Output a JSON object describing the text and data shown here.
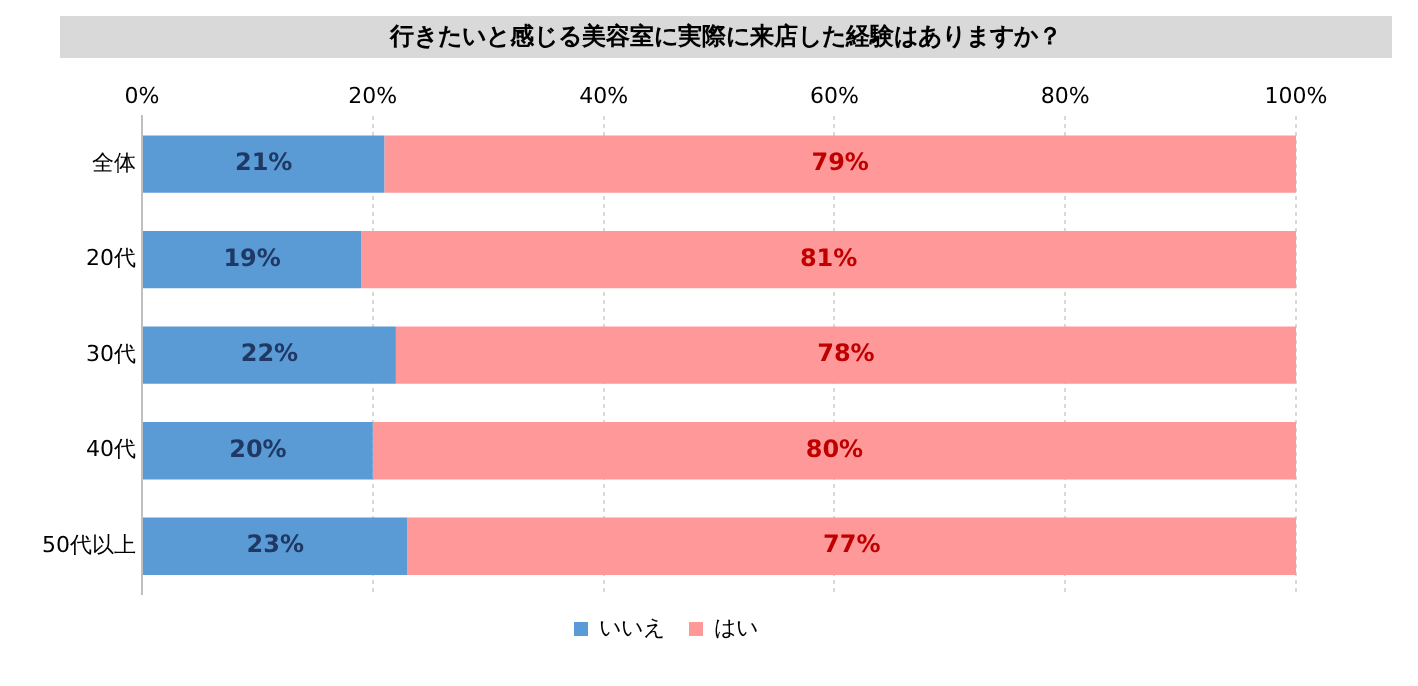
{
  "chart_data": {
    "type": "bar",
    "orientation": "horizontal",
    "stacked": true,
    "title": "行きたいと感じる美容室に実際に来店した経験はありますか？",
    "categories": [
      "全体",
      "20代",
      "30代",
      "40代",
      "50代以上"
    ],
    "series": [
      {
        "name": "いいえ",
        "color": "#5b9bd5",
        "values": [
          21,
          19,
          22,
          20,
          23
        ],
        "value_labels": [
          "21%",
          "19%",
          "22%",
          "20%",
          "23%"
        ]
      },
      {
        "name": "はい",
        "color": "#ff9999",
        "values": [
          79,
          81,
          78,
          80,
          77
        ],
        "value_labels": [
          "79%",
          "81%",
          "78%",
          "80%",
          "77%"
        ]
      }
    ],
    "xlim": [
      0,
      100
    ],
    "xticks": [
      {
        "value": 0,
        "label": "0%"
      },
      {
        "value": 20,
        "label": "20%"
      },
      {
        "value": 40,
        "label": "40%"
      },
      {
        "value": 60,
        "label": "60%"
      },
      {
        "value": 80,
        "label": "80%"
      },
      {
        "value": 100,
        "label": "100%"
      }
    ],
    "grid": "x",
    "legend": "bottom"
  }
}
